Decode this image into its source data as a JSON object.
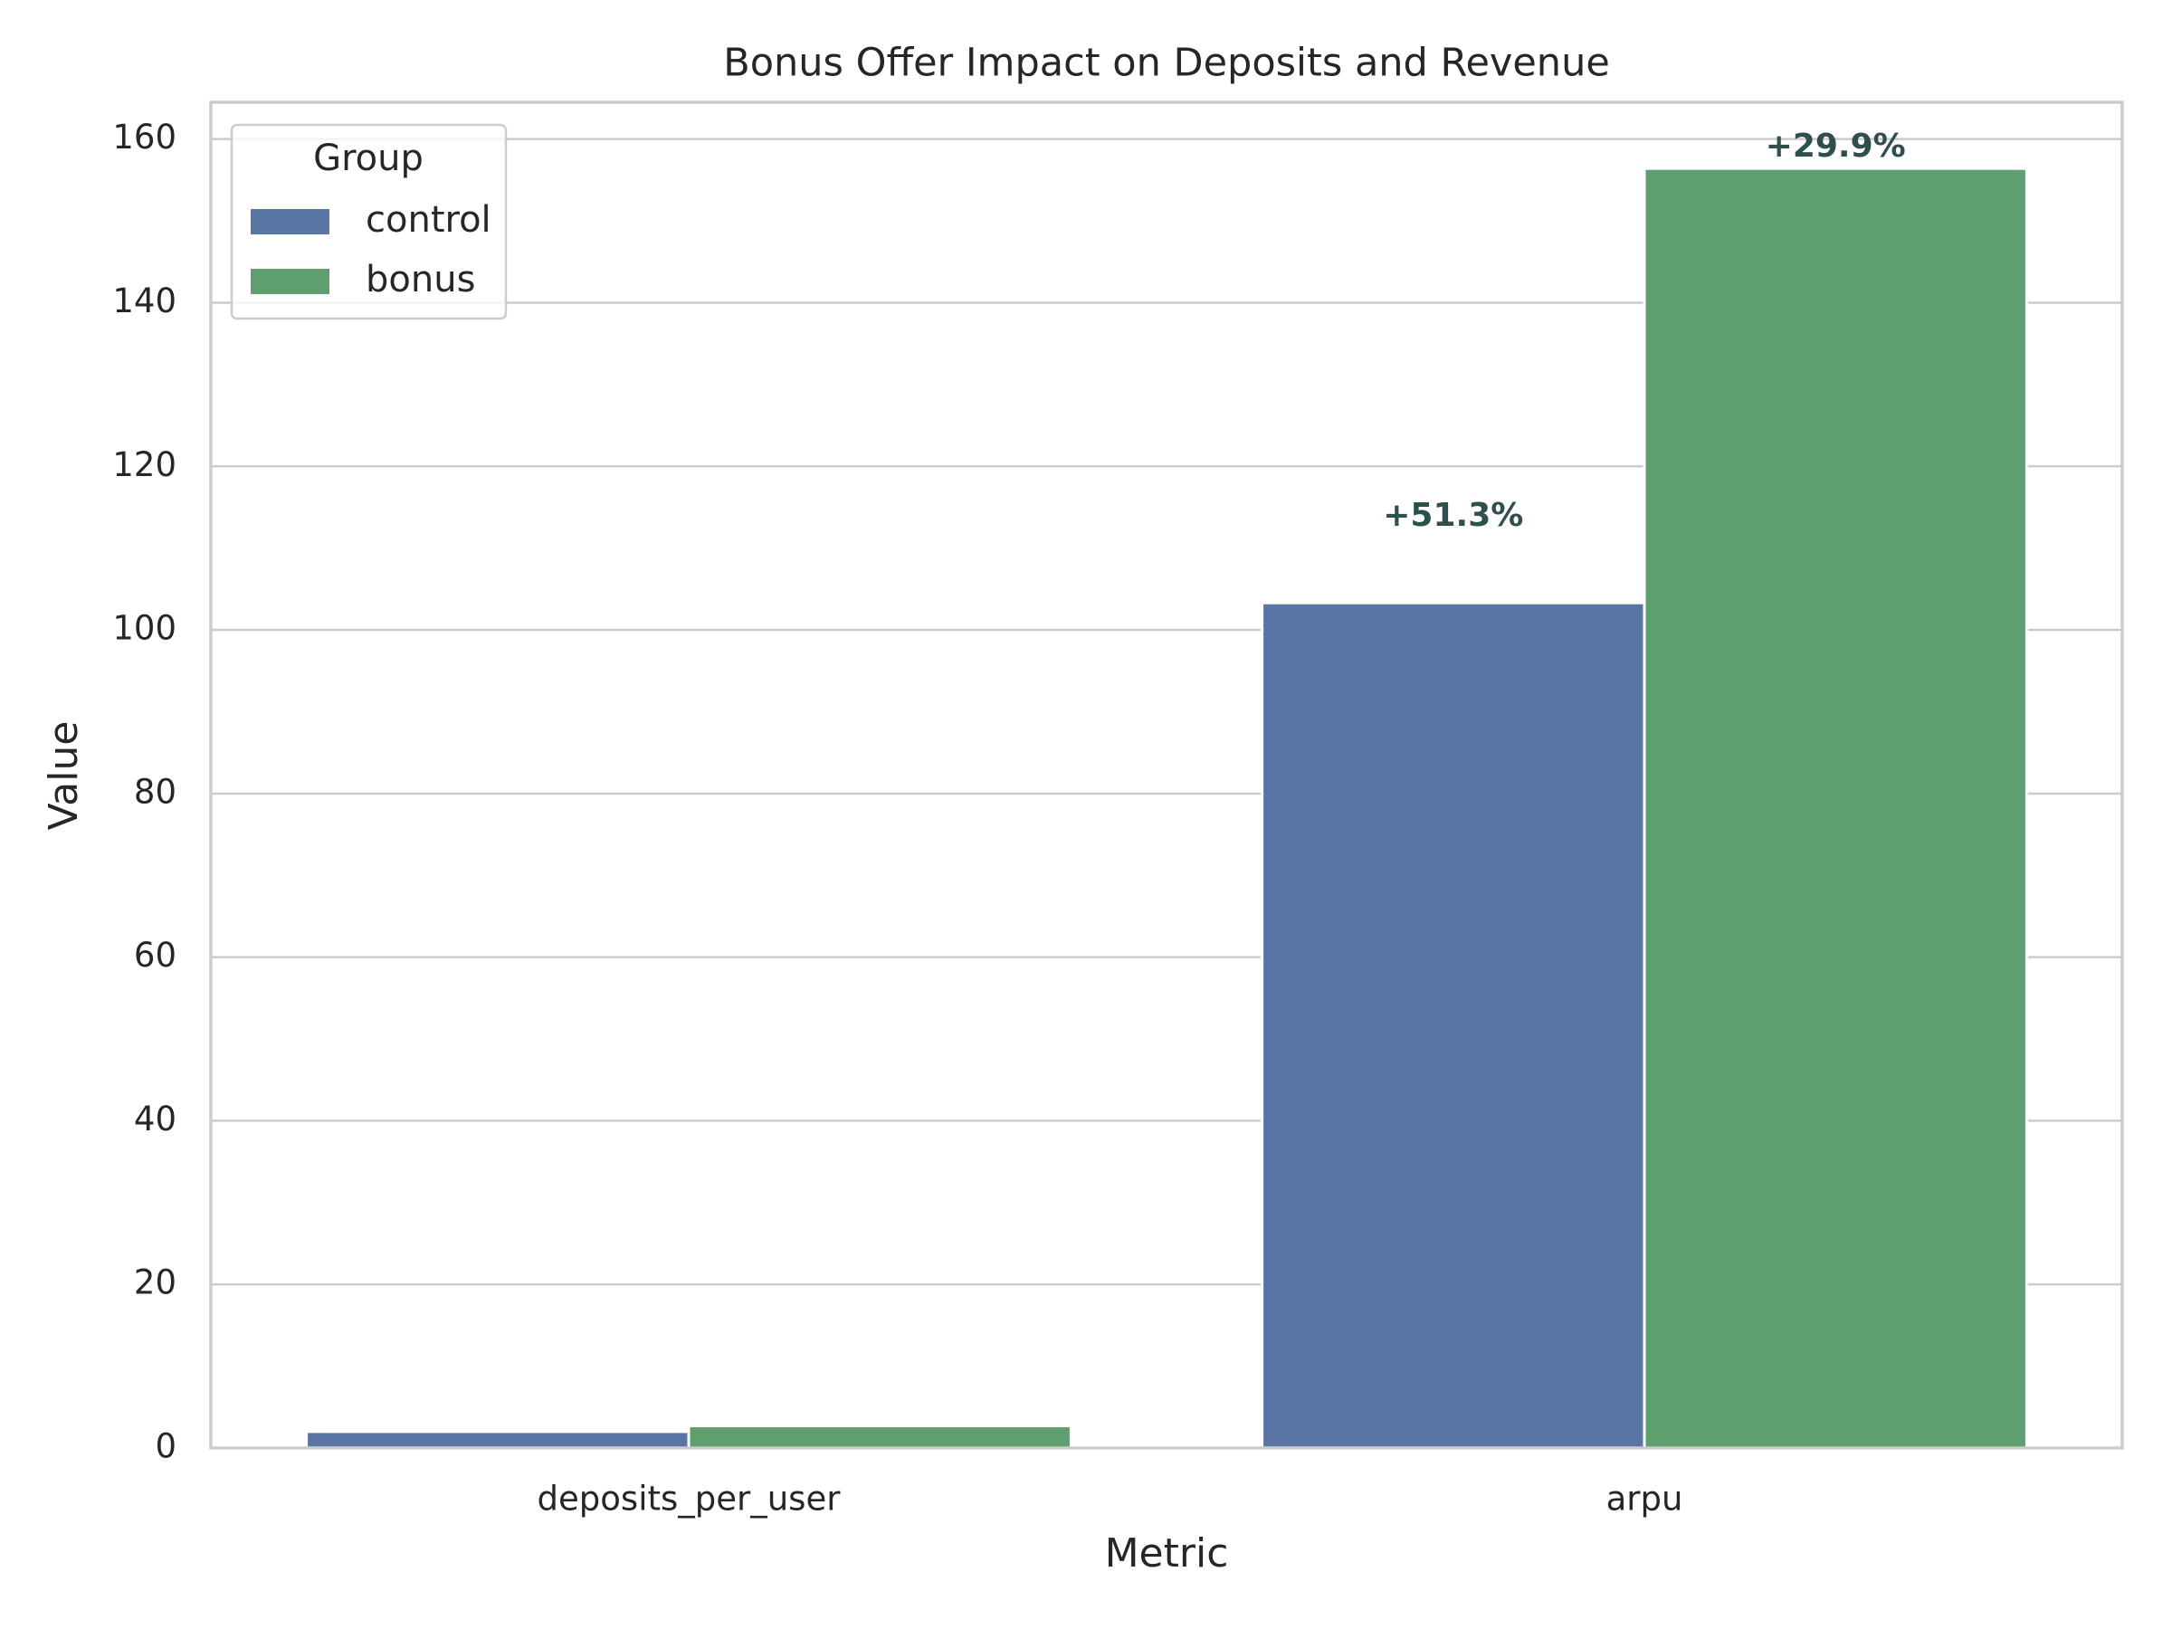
{
  "chart_data": {
    "type": "bar",
    "title": "Bonus Offer Impact on Deposits and Revenue",
    "x_label": "Metric",
    "y_label": "Value",
    "categories": [
      "deposits_per_user",
      "arpu"
    ],
    "series": [
      {
        "name": "control",
        "color": "#5975a4",
        "values": [
          2.0,
          103.3
        ]
      },
      {
        "name": "bonus",
        "color": "#5f9e6e",
        "values": [
          2.7,
          156.4
        ]
      }
    ],
    "annotations": [
      "+51.3%",
      "+29.9%"
    ],
    "legend_title": "Group",
    "legend_position": "upper left",
    "ylim": [
      0,
      164.5
    ],
    "yticks": [
      0,
      20,
      40,
      60,
      80,
      100,
      120,
      140,
      160
    ],
    "grid": true
  }
}
